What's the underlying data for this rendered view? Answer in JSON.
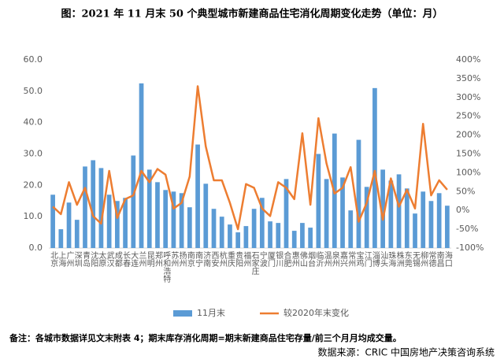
{
  "chart_data": {
    "type": "bar",
    "title": "图：2021 年 11 月末 50 个典型城市新建商品住宅消化周期变化走势（单位：月）",
    "note": "备注：各城市数据详见文末附表 4；期末库存消化周期=期末新建商品住宅存量/前三个月月均成交量。",
    "source": "数据来源：CRIC 中国房地产决策咨询系统",
    "categories": [
      "北京",
      "上海",
      "广州",
      "深圳",
      "青岛",
      "沈阳",
      "太原",
      "武汉",
      "成都",
      "长春",
      "大连",
      "兰州",
      "昆明",
      "郑州",
      "呼和浩特",
      "苏州",
      "扬州",
      "南京",
      "南宁",
      "济南",
      "西安",
      "杭州",
      "重庆",
      "贵阳",
      "福州",
      "石家庄",
      "宁波",
      "厦门",
      "银川",
      "合肥",
      "惠州",
      "佛山",
      "烟台",
      "临沂",
      "温州",
      "泉州",
      "嘉兴",
      "常州",
      "宝鸡",
      "江门",
      "淄博",
      "汕头",
      "珠海",
      "株洲",
      "东莞",
      "无锡",
      "柳州",
      "常德",
      "南昌",
      "海口"
    ],
    "series": [
      {
        "name": "11月末",
        "color": "#5b9bd5",
        "kind": "bar",
        "values": [
          17,
          6,
          14.5,
          9,
          26,
          28,
          25.5,
          17,
          15,
          16,
          29.5,
          52.5,
          25,
          21,
          18.5,
          18,
          17.5,
          13,
          33,
          20.5,
          12.5,
          10,
          7.5,
          5,
          7,
          12.5,
          16,
          8.5,
          8,
          22,
          5.5,
          8,
          6.5,
          30,
          22,
          36.5,
          22.5,
          12,
          34.5,
          19.5,
          51,
          25,
          21.5,
          23.5,
          19,
          11,
          18,
          15,
          17.5,
          13.5
        ]
      },
      {
        "name": "较2020年末变化",
        "color": "#ed7d31",
        "kind": "line",
        "axis": "y2",
        "values": [
          10,
          -10,
          75,
          15,
          60,
          -15,
          -35,
          105,
          -20,
          30,
          40,
          105,
          75,
          110,
          95,
          5,
          20,
          90,
          330,
          170,
          80,
          80,
          20,
          -50,
          70,
          60,
          5,
          -15,
          75,
          60,
          30,
          205,
          15,
          245,
          125,
          45,
          60,
          115,
          -30,
          20,
          105,
          -25,
          85,
          10,
          55,
          5,
          230,
          40,
          80,
          55
        ]
      }
    ],
    "ylim": [
      0,
      60
    ],
    "yticks": [
      {
        "value": 0,
        "label": "0.0"
      },
      {
        "value": 10,
        "label": "10.0"
      },
      {
        "value": 20,
        "label": "20.0"
      },
      {
        "value": 30,
        "label": "30.0"
      },
      {
        "value": 40,
        "label": "40.0"
      },
      {
        "value": 50,
        "label": "50.0"
      },
      {
        "value": 60,
        "label": "60.0"
      }
    ],
    "y2lim": [
      -100,
      400
    ],
    "y2ticks": [
      {
        "value": -100,
        "label": "-100%"
      },
      {
        "value": -50,
        "label": "-50%"
      },
      {
        "value": 0,
        "label": "0%"
      },
      {
        "value": 50,
        "label": "50%"
      },
      {
        "value": 100,
        "label": "100%"
      },
      {
        "value": 150,
        "label": "150%"
      },
      {
        "value": 200,
        "label": "200%"
      },
      {
        "value": 250,
        "label": "250%"
      },
      {
        "value": 300,
        "label": "300%"
      },
      {
        "value": 350,
        "label": "350%"
      },
      {
        "value": 400,
        "label": "400%"
      }
    ],
    "legend": "bottom"
  }
}
